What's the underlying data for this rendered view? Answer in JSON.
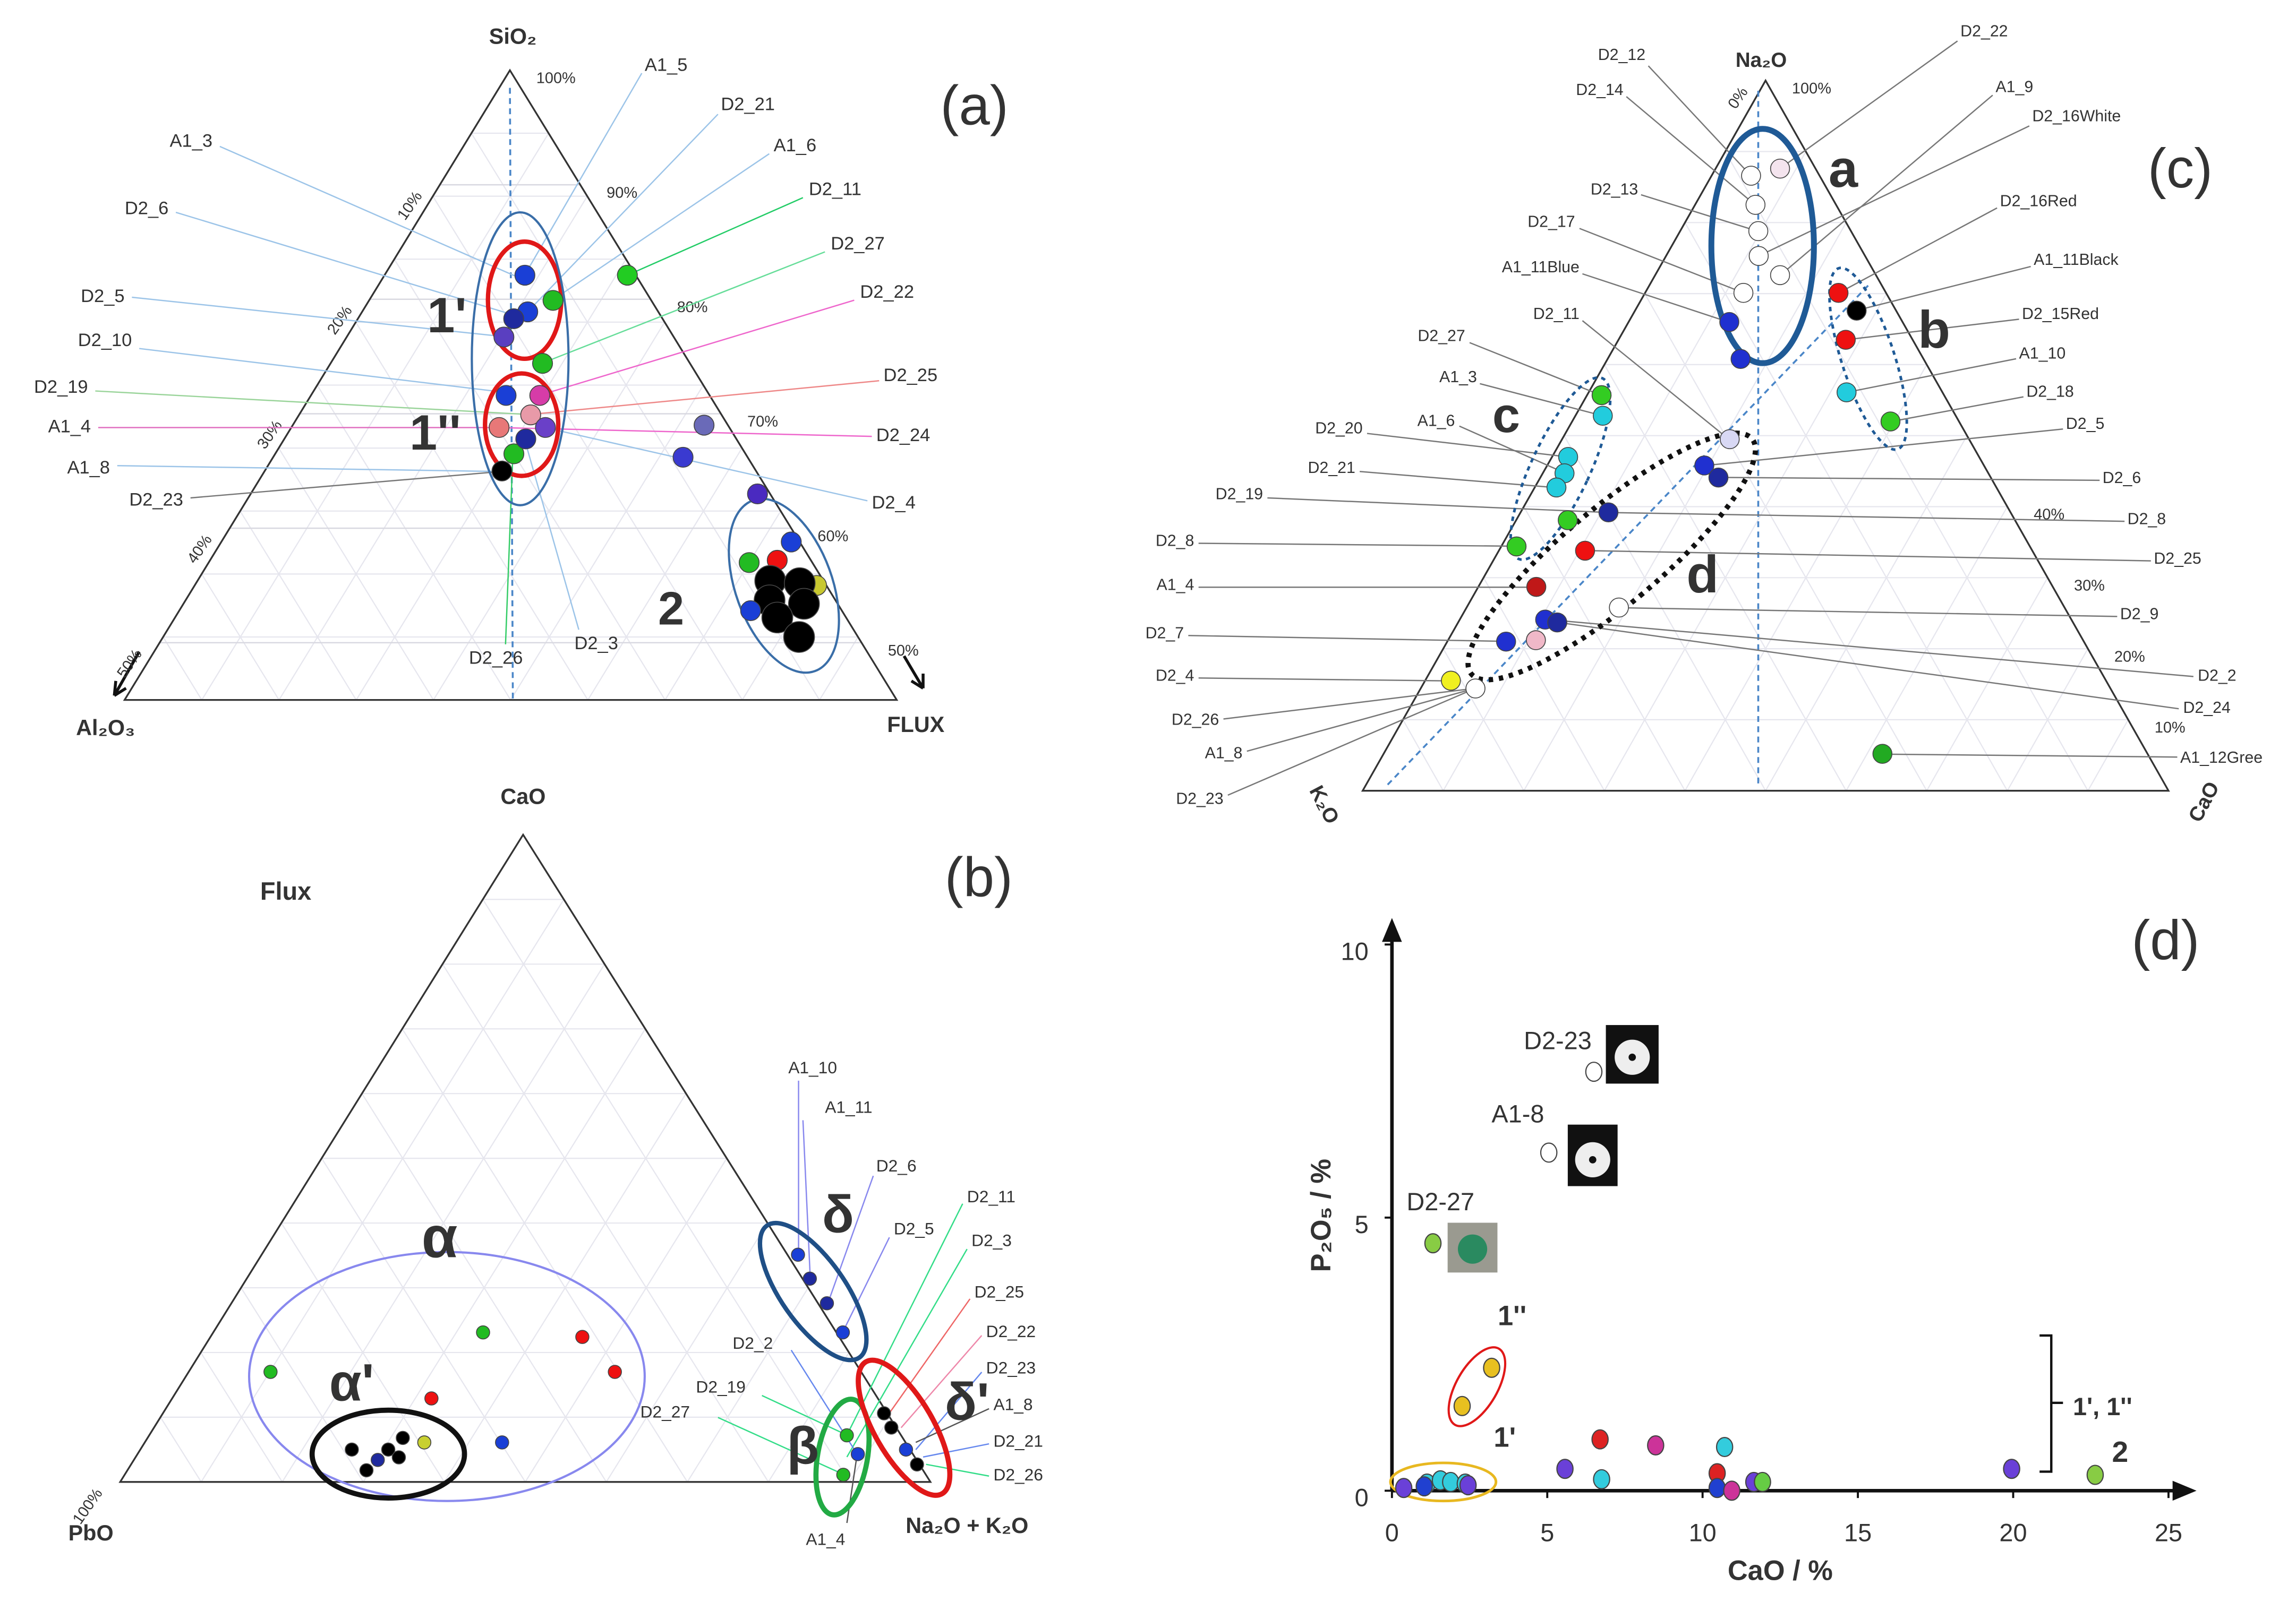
{
  "chart_data": [
    {
      "type": "ternary",
      "title": "(a)",
      "top": "SiO₂",
      "left": "Al₂O₃",
      "right": "FLUX",
      "toplim": [
        45,
        100
      ],
      "rticks": [
        {
          "value": 100,
          "label": "100%"
        },
        {
          "value": 90,
          "label": "90%"
        },
        {
          "value": 80,
          "label": "80%"
        },
        {
          "value": 70,
          "label": "70%"
        },
        {
          "value": 60,
          "label": "60%"
        },
        {
          "value": 50,
          "label": "50%"
        }
      ],
      "lticks": [
        {
          "value": 10,
          "label": "10%"
        },
        {
          "value": 20,
          "label": "20%"
        },
        {
          "value": 30,
          "label": "30%"
        },
        {
          "value": 40,
          "label": "40%"
        },
        {
          "value": 50,
          "label": "50%"
        }
      ],
      "grid": true,
      "top_values": [
        82.1,
        79.9,
        78.9,
        78.3,
        76.7,
        74.4,
        71.6,
        71.6,
        69.9,
        68.8,
        68.8,
        65.0,
        66.5,
        67.8,
        82.1,
        69.0,
        66.2,
        63.0,
        58.8,
        57.2,
        57.0,
        55.0,
        55.4,
        55.2,
        53.7,
        53.4,
        52.2,
        50.5,
        52.8
      ],
      "right_values": [
        10.0,
        13.1,
        11.8,
        11.1,
        11.2,
        15.1,
        16.3,
        13.9,
        16.5,
        14.8,
        18.1,
        16.9,
        17.0,
        17.2,
        17.3,
        29.3,
        29.2,
        36.1,
        40.6,
        40.4,
        38.5,
        44.3,
        40.8,
        43.0,
        41.6,
        44.2,
        42.9,
        45.3,
        40.7
      ],
      "colors": [
        "#1a3fd6",
        "#22bb22",
        "#1a3fd6",
        "#1f2a9e",
        "#5a3fc0",
        "#22bb22",
        "#d63ca8",
        "#1a3fd6",
        "#e89aa8",
        "#e87878",
        "#6a40c8",
        "#000000",
        "#22bb22",
        "#1f2a9e",
        "#22cc22",
        "#6a6ab8",
        "#3a3ad0",
        "#4a2ac0",
        "#1a3fd6",
        "#ee1111",
        "#22bb22",
        "#c8c830",
        "#000000",
        "#000000",
        "#000000",
        "#000000",
        "#000000",
        "#000000",
        "#1a3fd6"
      ],
      "labels": [
        "A1_3",
        "D2_6",
        "D2_5",
        "D2_10",
        "D2_19",
        "A1_4",
        "A1_8",
        "D2_23",
        "A1_5",
        "D2_21",
        "A1_6",
        "D2_11",
        "D2_27",
        "D2_22",
        "D2_25",
        "D2_24",
        "D2_4",
        "D2_26",
        "D2_3"
      ],
      "annotations": [
        "1'",
        "1''",
        "2"
      ]
    },
    {
      "type": "ternary",
      "title": "(b)",
      "subtitle": "Flux",
      "top": "CaO",
      "left": "PbO",
      "right": "Na₂O + K₂O",
      "lticks": [
        {
          "value": 100,
          "label": "100%"
        }
      ],
      "top_values": [
        17.0,
        23.1,
        22.4,
        17.0,
        12.9,
        6.1,
        5.0,
        1.8,
        5.0,
        6.8,
        3.8,
        3.4,
        6.1,
        35.1,
        31.4,
        27.6,
        23.1,
        7.2,
        1.1,
        4.3,
        10.6,
        8.4,
        5.0,
        2.7
      ],
      "right_values": [
        10.1,
        33.3,
        45.9,
        52.6,
        32.0,
        44.1,
        26.1,
        29.5,
        30.6,
        31.5,
        32.5,
        30.1,
        34.5,
        66.2,
        69.5,
        73.5,
        77.7,
        86.1,
        88.7,
        88.9,
        89.0,
        91.0,
        94.5,
        97.0
      ],
      "colors": [
        "#22bb22",
        "#22bb22",
        "#ee1111",
        "#ee1111",
        "#ee1111",
        "#1a3fd6",
        "#000000",
        "#000000",
        "#000000",
        "#000000",
        "#000000",
        "#1f2a9e",
        "#c8d030",
        "#1a3fd6",
        "#1f2a9e",
        "#1f2a9e",
        "#1a3fd6",
        "#22bb22",
        "#22bb22",
        "#1a3fd6",
        "#000000",
        "#000000",
        "#1a3fd6",
        "#000000"
      ],
      "labels": [
        "A1_10",
        "A1_11",
        "D2_6",
        "D2_11",
        "D2_5",
        "D2_3",
        "D2_25",
        "D2_22",
        "D2_23",
        "A1_8",
        "D2_21",
        "D2_26",
        "D2_2",
        "D2_19",
        "D2_27",
        "A1_4"
      ],
      "annotations": [
        "α",
        "α'",
        "δ",
        "δ'",
        "β"
      ]
    },
    {
      "type": "ternary",
      "title": "(c)",
      "top": "Na₂O",
      "left": "K₂O",
      "right": "CaO",
      "lticks": [
        {
          "value": 0,
          "label": "0%"
        }
      ],
      "rticks": [
        {
          "value": 100,
          "label": "100%"
        },
        {
          "value": 40,
          "label": "40%"
        },
        {
          "value": 30,
          "label": "30%"
        },
        {
          "value": 20,
          "label": "20%"
        },
        {
          "value": 10,
          "label": "10%"
        }
      ],
      "top_values": [
        86.6,
        87.6,
        82.5,
        78.8,
        75.3,
        72.6,
        70.1,
        66.0,
        60.8,
        70.1,
        67.6,
        63.5,
        56.1,
        52.0,
        55.7,
        52.8,
        47.0,
        44.7,
        42.7,
        38.1,
        34.4,
        49.5,
        45.8,
        44.1,
        39.2,
        33.8,
        28.7,
        25.8,
        24.1,
        23.7,
        21.0,
        21.2,
        15.5,
        14.4,
        5.2
      ],
      "right_values": [
        4.9,
        8.0,
        7.5,
        9.7,
        11.5,
        15.5,
        12.2,
        12.5,
        16.5,
        24.0,
        27.5,
        28.2,
        32.0,
        39.5,
        1.8,
        3.4,
        2.0,
        2.7,
        2.7,
        6.4,
        1.9,
        20.8,
        19.5,
        22.1,
        10.9,
        10.7,
        7.2,
        18.9,
        10.6,
        12.3,
        7.3,
        10.9,
        3.2,
        6.8,
        61.9
      ],
      "colors": [
        "#ffffff",
        "#f4e4ee",
        "#ffffff",
        "#ffffff",
        "#ffffff",
        "#ffffff",
        "#ffffff",
        "#2030d0",
        "#2030d0",
        "#ee1111",
        "#000000",
        "#ee1111",
        "#22ccdd",
        "#33cc22",
        "#33cc22",
        "#22ccdd",
        "#22ccdd",
        "#22ccdd",
        "#22ccdd",
        "#33cc22",
        "#33cc22",
        "#d8d8f4",
        "#2030d0",
        "#1f2a9e",
        "#1f2a9e",
        "#ee1111",
        "#c01818",
        "#ffffff",
        "#2030d0",
        "#1f2a9e",
        "#2030d0",
        "#f0b8c8",
        "#f0f020",
        "#ffffff",
        "#22aa22"
      ],
      "labels": [
        "D2_12",
        "D2_14",
        "D2_13",
        "D2_17",
        "A1_11Blue",
        "D2_11",
        "D2_27",
        "A1_3",
        "D2_20",
        "A1_6",
        "D2_21",
        "D2_19",
        "D2_8",
        "A1_4",
        "D2_7",
        "D2_4",
        "D2_26",
        "A1_8",
        "D2_23",
        "D2_22",
        "A1_9",
        "D2_16White",
        "D2_16Red",
        "A1_11Black",
        "D2_15Red",
        "A1_10",
        "D2_18",
        "D2_5",
        "D2_6",
        "D2_8",
        "D2_25",
        "D2_9",
        "D2_2",
        "D2_24",
        "A1_12Gree"
      ],
      "annotations": [
        "a",
        "b",
        "c",
        "d"
      ]
    },
    {
      "type": "scatter",
      "title": "(d)",
      "xlabel": "CaO / %",
      "ylabel": "P₂O₅ / %",
      "xlim": [
        0,
        25
      ],
      "ylim": [
        0,
        10
      ],
      "xticks": [
        0,
        5,
        10,
        15,
        20,
        25
      ],
      "yticks": [
        0,
        5,
        10
      ],
      "x": [
        6.5,
        5.05,
        1.32,
        2.26,
        3.21,
        1.13,
        1.56,
        1.89,
        2.36,
        0.38,
        1.04,
        2.45,
        6.7,
        5.57,
        6.75,
        8.49,
        10.47,
        10.71,
        10.47,
        10.94,
        11.65,
        11.93,
        19.95,
        22.64
      ],
      "values": [
        7.67,
        6.19,
        4.53,
        1.55,
        2.25,
        0.13,
        0.19,
        0.16,
        0.13,
        0.05,
        0.08,
        0.1,
        0.94,
        0.4,
        0.21,
        0.83,
        0.32,
        0.8,
        0.05,
        0.0,
        0.16,
        0.16,
        0.4,
        0.29
      ],
      "colors": [
        "#ffffff",
        "#ffffff",
        "#88cc44",
        "#e8c020",
        "#e8c020",
        "#33ccdd",
        "#33ccdd",
        "#33ccdd",
        "#33ccdd",
        "#6a40d8",
        "#2040d0",
        "#6a40d8",
        "#dd2222",
        "#6a40d8",
        "#33ccdd",
        "#cc3399",
        "#dd2222",
        "#33ccdd",
        "#2040d0",
        "#cc3399",
        "#6a40d8",
        "#66cc44",
        "#6a40d8",
        "#88cc44"
      ],
      "annotations": [
        "D2-23",
        "A1-8",
        "D2-27",
        "1''",
        "1'",
        "1', 1''",
        "2"
      ]
    }
  ]
}
